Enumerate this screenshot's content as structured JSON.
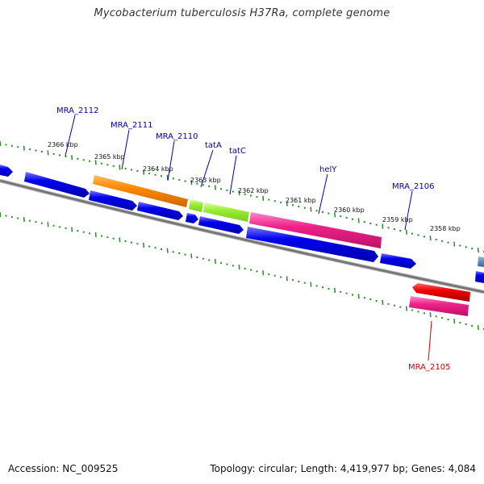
{
  "title": "Mycobacterium tuberculosis H37Ra, complete genome",
  "footer": {
    "accession": "Accession: NC_009525",
    "summary": "Topology: circular; Length: 4,419,977 bp; Genes: 4,084"
  },
  "colors": {
    "backbone": "#777777",
    "tick": "#2a8a2a",
    "gene_blue": "#0000dd",
    "gene_orange": "#ff8800",
    "gene_lightgreen": "#99ee33",
    "gene_magenta": "#ee2288",
    "gene_red": "#ee0000",
    "gene_steelblue": "#4488bb",
    "label_blue": "#0000aa",
    "label_red": "#cc0000"
  },
  "scale_labels": [
    "2366 kbp",
    "2365 kbp",
    "2364 kbp",
    "2363 kbp",
    "2362 kbp",
    "2361 kbp",
    "2360 kbp",
    "2359 kbp",
    "2358 kbp"
  ],
  "gene_labels": [
    {
      "text": "MRA_2112",
      "color": "blue"
    },
    {
      "text": "MRA_2111",
      "color": "blue"
    },
    {
      "text": "MRA_2110",
      "color": "blue"
    },
    {
      "text": "tatA",
      "color": "blue"
    },
    {
      "text": "tatC",
      "color": "blue"
    },
    {
      "text": "helY",
      "color": "blue"
    },
    {
      "text": "MRA_2106",
      "color": "blue"
    },
    {
      "text": "MRA_2105",
      "color": "red"
    }
  ]
}
